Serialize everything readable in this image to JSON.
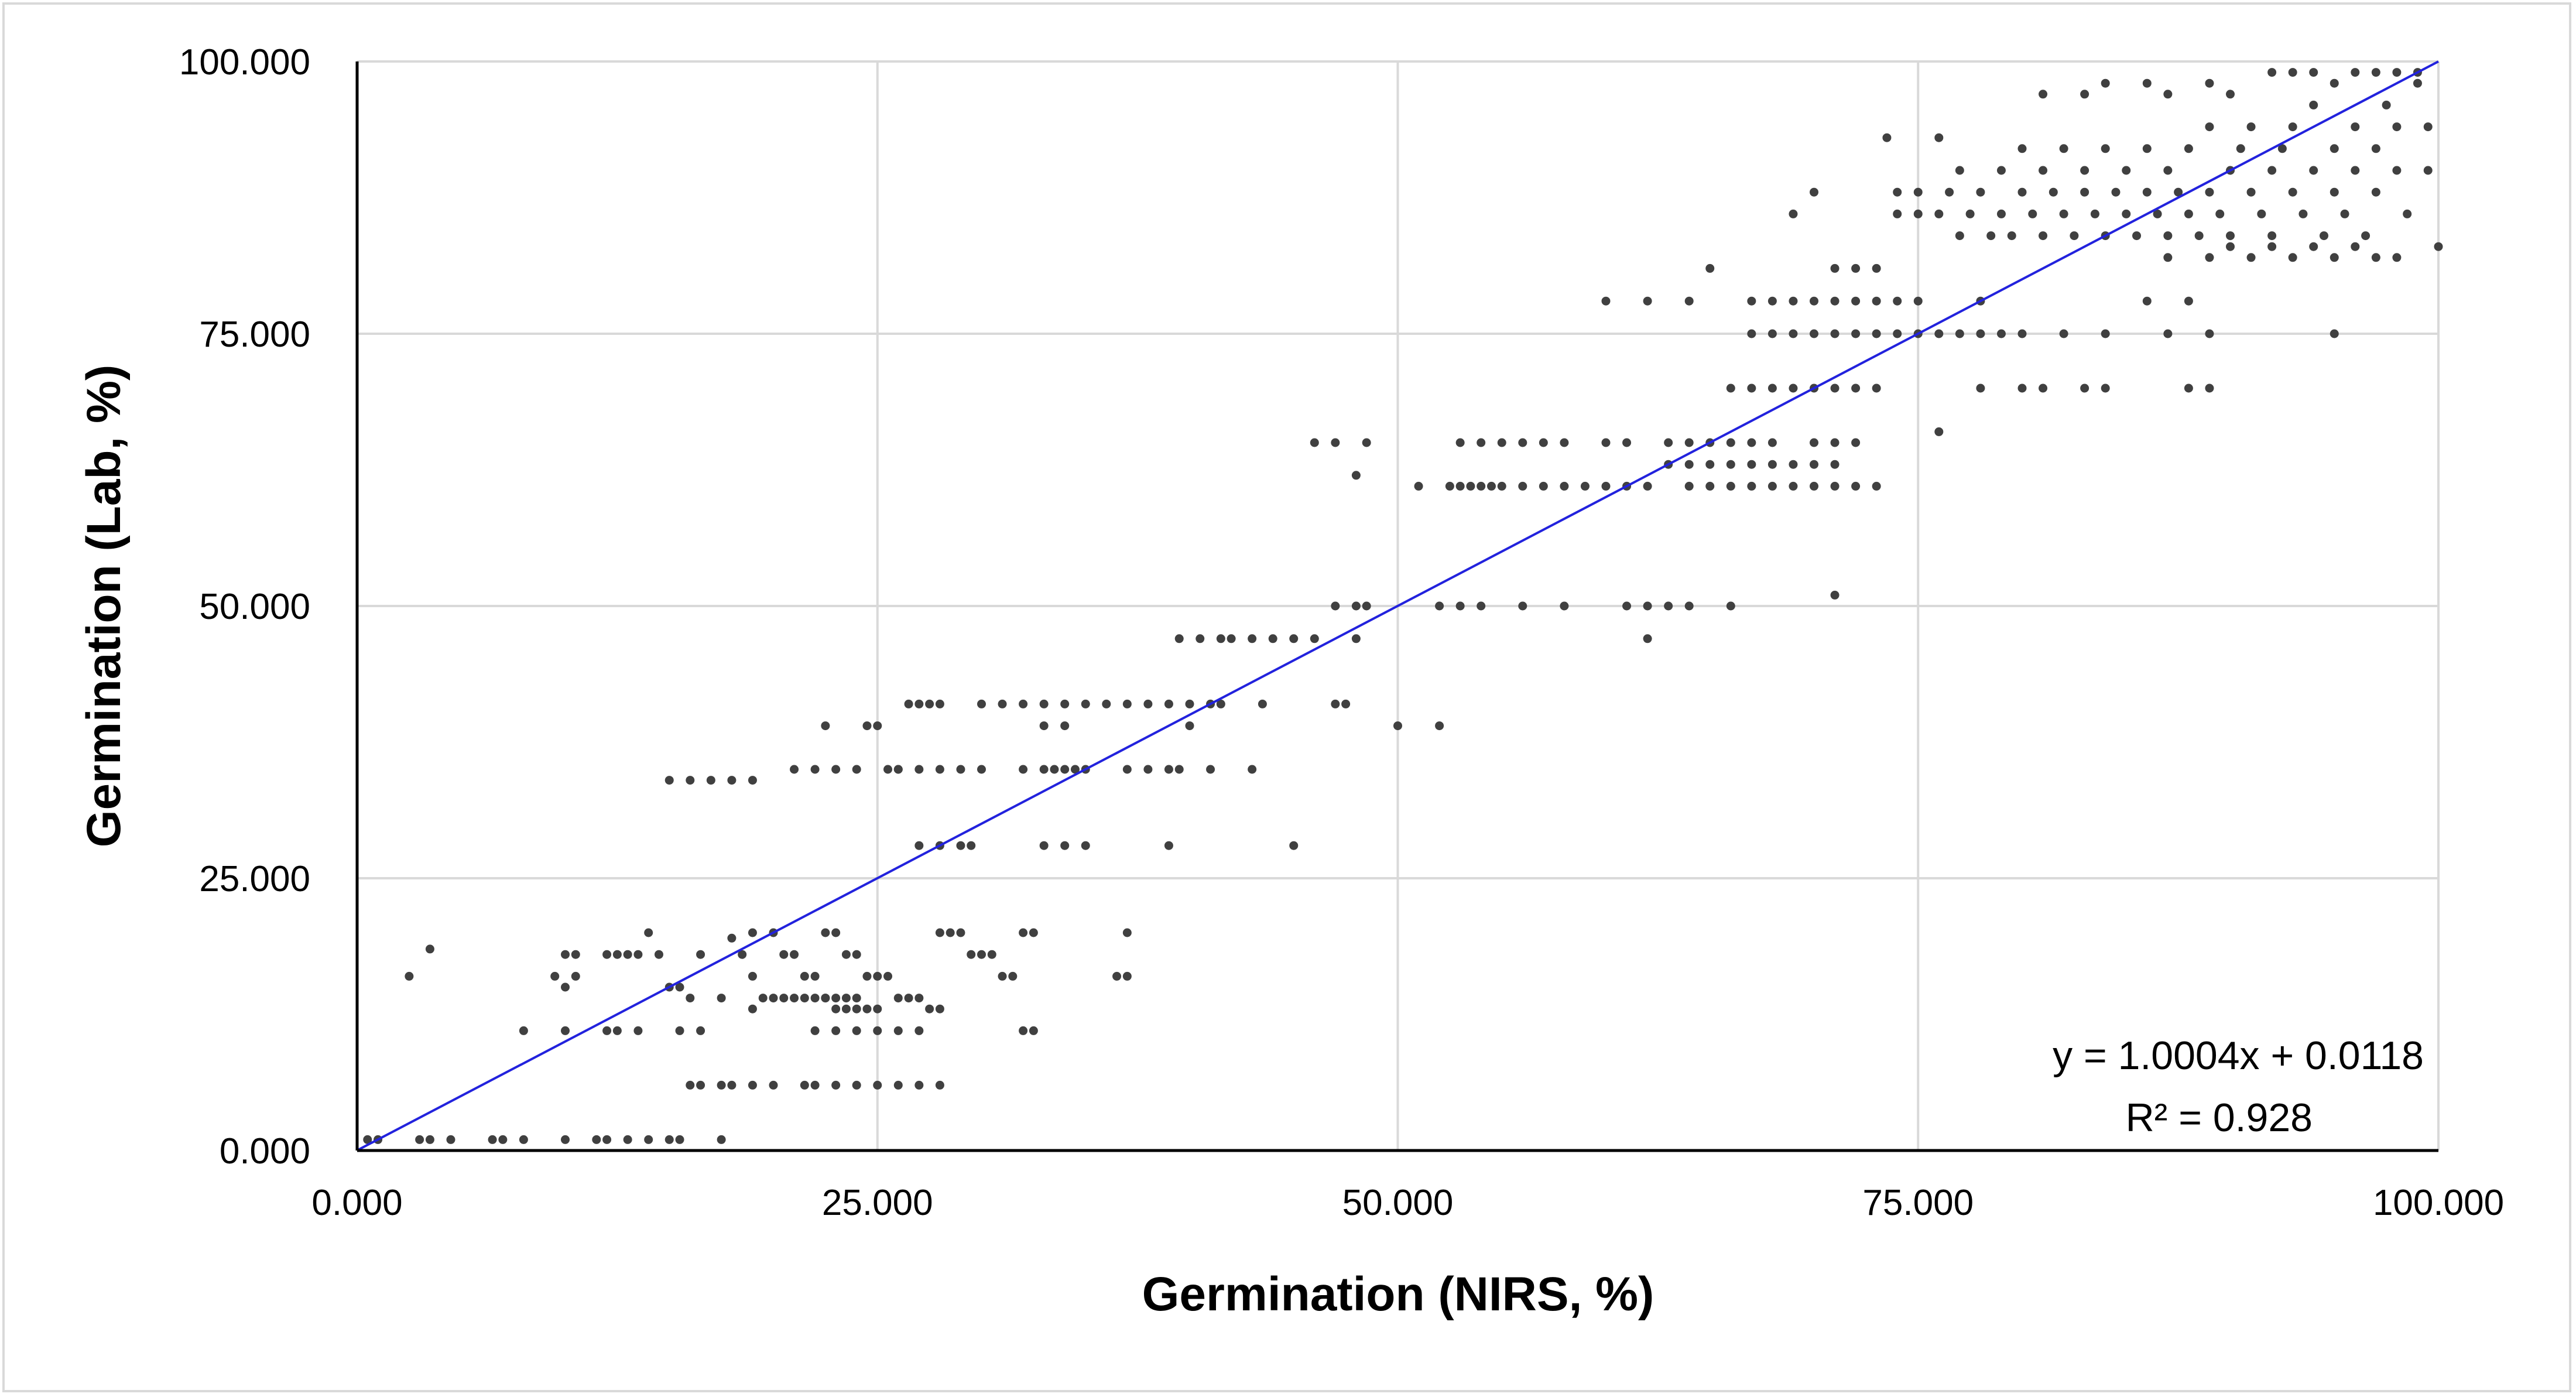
{
  "chart_data": {
    "type": "scatter",
    "xlabel": "Germination (NIRS, %)",
    "ylabel": "Germination (Lab, %)",
    "xlim": [
      0,
      100
    ],
    "ylim": [
      0,
      100
    ],
    "x_ticks": [
      "0.000",
      "25.000",
      "50.000",
      "75.000",
      "100.000"
    ],
    "y_ticks": [
      "0.000",
      "25.000",
      "50.000",
      "75.000",
      "100.000"
    ],
    "grid": true,
    "legend": "none",
    "trendline": {
      "slope": 1.0004,
      "intercept": 0.0118,
      "equation_label": "y = 1.0004x + 0.0118",
      "r2_label": "R² = 0.928",
      "color": "#2222dd"
    },
    "marker_color": "#404040",
    "points": [
      [
        0.5,
        1
      ],
      [
        1,
        1
      ],
      [
        3,
        1
      ],
      [
        3.5,
        1
      ],
      [
        4.5,
        1
      ],
      [
        6.5,
        1
      ],
      [
        7,
        1
      ],
      [
        8,
        1
      ],
      [
        10,
        1
      ],
      [
        11.5,
        1
      ],
      [
        12,
        1
      ],
      [
        13,
        1
      ],
      [
        14,
        1
      ],
      [
        15,
        1
      ],
      [
        15.5,
        1
      ],
      [
        17.5,
        1
      ],
      [
        2.5,
        16
      ],
      [
        3.5,
        18.5
      ],
      [
        8,
        11
      ],
      [
        10,
        11
      ],
      [
        12,
        11
      ],
      [
        12.5,
        11
      ],
      [
        13.5,
        11
      ],
      [
        15.5,
        11
      ],
      [
        16.5,
        11
      ],
      [
        9.5,
        16
      ],
      [
        10,
        15
      ],
      [
        10.5,
        16
      ],
      [
        10,
        18
      ],
      [
        10.5,
        18
      ],
      [
        12,
        18
      ],
      [
        12.5,
        18
      ],
      [
        13,
        18
      ],
      [
        13.5,
        18
      ],
      [
        14,
        20
      ],
      [
        14.5,
        18
      ],
      [
        15,
        15
      ],
      [
        15.5,
        15
      ],
      [
        16,
        14
      ],
      [
        16,
        6
      ],
      [
        16.5,
        6
      ],
      [
        17.5,
        6
      ],
      [
        18,
        6
      ],
      [
        19,
        6
      ],
      [
        20,
        6
      ],
      [
        15,
        34
      ],
      [
        16,
        34
      ],
      [
        17,
        34
      ],
      [
        18,
        34
      ],
      [
        19,
        34
      ],
      [
        16.5,
        18
      ],
      [
        17.5,
        14
      ],
      [
        18,
        19.5
      ],
      [
        18.5,
        18
      ],
      [
        19,
        16
      ],
      [
        19,
        13
      ],
      [
        19.5,
        14
      ],
      [
        20,
        14
      ],
      [
        20.5,
        14
      ],
      [
        21,
        14
      ],
      [
        21.5,
        14
      ],
      [
        22,
        14
      ],
      [
        22.5,
        14
      ],
      [
        23,
        14
      ],
      [
        23.5,
        14
      ],
      [
        24,
        14
      ],
      [
        19,
        20
      ],
      [
        20,
        20
      ],
      [
        20.5,
        18
      ],
      [
        21,
        18
      ],
      [
        21.5,
        16
      ],
      [
        22,
        16
      ],
      [
        22.5,
        14
      ],
      [
        23,
        13
      ],
      [
        23.5,
        13
      ],
      [
        24,
        13
      ],
      [
        24.5,
        13
      ],
      [
        25,
        13
      ],
      [
        21,
        35
      ],
      [
        22,
        35
      ],
      [
        22.5,
        39
      ],
      [
        23,
        35
      ],
      [
        24,
        35
      ],
      [
        24.5,
        39
      ],
      [
        25,
        39
      ],
      [
        25.5,
        35
      ],
      [
        26,
        35
      ],
      [
        22.5,
        20
      ],
      [
        23,
        20
      ],
      [
        23.5,
        18
      ],
      [
        24,
        18
      ],
      [
        24.5,
        16
      ],
      [
        25,
        16
      ],
      [
        25.5,
        16
      ],
      [
        26,
        14
      ],
      [
        26.5,
        14
      ],
      [
        27,
        14
      ],
      [
        27.5,
        13
      ],
      [
        28,
        13
      ],
      [
        22,
        11
      ],
      [
        23,
        11
      ],
      [
        24,
        11
      ],
      [
        25,
        11
      ],
      [
        26,
        11
      ],
      [
        27,
        11
      ],
      [
        21.5,
        6
      ],
      [
        22,
        6
      ],
      [
        23,
        6
      ],
      [
        24,
        6
      ],
      [
        25,
        6
      ],
      [
        26,
        6
      ],
      [
        27,
        6
      ],
      [
        28,
        6
      ],
      [
        26,
        35
      ],
      [
        27,
        35
      ],
      [
        28,
        35
      ],
      [
        29,
        35
      ],
      [
        30,
        35
      ],
      [
        26.5,
        41
      ],
      [
        27,
        41
      ],
      [
        27.5,
        41
      ],
      [
        28,
        41
      ],
      [
        30,
        41
      ],
      [
        31,
        41
      ],
      [
        32,
        41
      ],
      [
        33,
        41
      ],
      [
        27,
        28
      ],
      [
        28,
        28
      ],
      [
        29,
        28
      ],
      [
        29.5,
        28
      ],
      [
        28,
        20
      ],
      [
        28.5,
        20
      ],
      [
        29,
        20
      ],
      [
        29.5,
        18
      ],
      [
        30,
        18
      ],
      [
        30.5,
        18
      ],
      [
        31,
        16
      ],
      [
        31.5,
        16
      ],
      [
        32,
        20
      ],
      [
        32.5,
        20
      ],
      [
        32,
        11
      ],
      [
        32.5,
        11
      ],
      [
        32,
        35
      ],
      [
        33,
        35
      ],
      [
        33.5,
        35
      ],
      [
        34,
        35
      ],
      [
        34.5,
        35
      ],
      [
        35,
        35
      ],
      [
        33,
        39
      ],
      [
        34,
        39
      ],
      [
        33,
        28
      ],
      [
        34,
        28
      ],
      [
        35,
        28
      ],
      [
        34,
        41
      ],
      [
        35,
        41
      ],
      [
        36,
        41
      ],
      [
        37,
        41
      ],
      [
        38,
        41
      ],
      [
        39,
        41
      ],
      [
        40,
        41
      ],
      [
        36.5,
        16
      ],
      [
        37,
        16
      ],
      [
        37,
        20
      ],
      [
        37,
        35
      ],
      [
        38,
        35
      ],
      [
        39,
        35
      ],
      [
        39.5,
        35
      ],
      [
        41,
        35
      ],
      [
        43,
        35
      ],
      [
        39,
        28
      ],
      [
        40,
        39
      ],
      [
        41,
        41
      ],
      [
        41.5,
        41
      ],
      [
        39.5,
        47
      ],
      [
        40.5,
        47
      ],
      [
        41.5,
        47
      ],
      [
        42,
        47
      ],
      [
        43,
        47
      ],
      [
        44,
        47
      ],
      [
        45,
        47
      ],
      [
        46,
        47
      ],
      [
        43.5,
        41
      ],
      [
        45,
        28
      ],
      [
        47,
        41
      ],
      [
        47.5,
        41
      ],
      [
        48,
        47
      ],
      [
        46,
        65
      ],
      [
        47,
        65
      ],
      [
        48,
        62
      ],
      [
        48.5,
        65
      ],
      [
        47,
        50
      ],
      [
        48,
        50
      ],
      [
        48.5,
        50
      ],
      [
        50,
        39
      ],
      [
        52,
        39
      ],
      [
        51,
        61
      ],
      [
        52.5,
        61
      ],
      [
        53,
        61
      ],
      [
        53.5,
        61
      ],
      [
        54,
        61
      ],
      [
        54.5,
        61
      ],
      [
        55,
        61
      ],
      [
        56,
        61
      ],
      [
        57,
        61
      ],
      [
        58,
        61
      ],
      [
        59,
        61
      ],
      [
        60,
        61
      ],
      [
        61,
        61
      ],
      [
        62,
        61
      ],
      [
        53,
        65
      ],
      [
        54,
        65
      ],
      [
        55,
        65
      ],
      [
        56,
        65
      ],
      [
        57,
        65
      ],
      [
        58,
        65
      ],
      [
        60,
        65
      ],
      [
        61,
        65
      ],
      [
        52,
        50
      ],
      [
        53,
        50
      ],
      [
        54,
        50
      ],
      [
        56,
        50
      ],
      [
        58,
        50
      ],
      [
        61,
        50
      ],
      [
        62,
        50
      ],
      [
        63,
        50
      ],
      [
        64,
        50
      ],
      [
        66,
        50
      ],
      [
        62,
        47
      ],
      [
        64,
        61
      ],
      [
        65,
        61
      ],
      [
        66,
        61
      ],
      [
        67,
        61
      ],
      [
        68,
        61
      ],
      [
        69,
        61
      ],
      [
        70,
        61
      ],
      [
        71,
        61
      ],
      [
        72,
        61
      ],
      [
        73,
        61
      ],
      [
        63,
        63
      ],
      [
        64,
        63
      ],
      [
        65,
        63
      ],
      [
        66,
        63
      ],
      [
        67,
        63
      ],
      [
        68,
        63
      ],
      [
        69,
        63
      ],
      [
        70,
        63
      ],
      [
        71,
        63
      ],
      [
        63,
        65
      ],
      [
        64,
        65
      ],
      [
        65,
        65
      ],
      [
        66,
        65
      ],
      [
        67,
        65
      ],
      [
        68,
        65
      ],
      [
        70,
        65
      ],
      [
        71,
        65
      ],
      [
        72,
        65
      ],
      [
        60,
        78
      ],
      [
        62,
        78
      ],
      [
        64,
        78
      ],
      [
        66,
        70
      ],
      [
        67,
        70
      ],
      [
        68,
        70
      ],
      [
        69,
        70
      ],
      [
        70,
        70
      ],
      [
        71,
        70
      ],
      [
        72,
        70
      ],
      [
        73,
        70
      ],
      [
        65,
        81
      ],
      [
        67,
        78
      ],
      [
        68,
        78
      ],
      [
        69,
        78
      ],
      [
        70,
        78
      ],
      [
        71,
        78
      ],
      [
        72,
        78
      ],
      [
        73,
        78
      ],
      [
        74,
        78
      ],
      [
        75,
        78
      ],
      [
        67,
        75
      ],
      [
        68,
        75
      ],
      [
        69,
        75
      ],
      [
        70,
        75
      ],
      [
        71,
        75
      ],
      [
        72,
        75
      ],
      [
        73,
        75
      ],
      [
        74,
        75
      ],
      [
        75,
        75
      ],
      [
        76,
        75
      ],
      [
        77,
        75
      ],
      [
        78,
        75
      ],
      [
        79,
        75
      ],
      [
        80,
        75
      ],
      [
        82,
        75
      ],
      [
        84,
        75
      ],
      [
        71,
        51
      ],
      [
        69,
        86
      ],
      [
        70,
        88
      ],
      [
        71,
        81
      ],
      [
        72,
        81
      ],
      [
        73,
        81
      ],
      [
        73.5,
        93
      ],
      [
        74,
        86
      ],
      [
        74,
        88
      ],
      [
        75,
        86
      ],
      [
        75,
        88
      ],
      [
        76,
        93
      ],
      [
        76,
        86
      ],
      [
        76.5,
        88
      ],
      [
        77,
        84
      ],
      [
        77,
        90
      ],
      [
        77.5,
        86
      ],
      [
        78,
        88
      ],
      [
        78,
        78
      ],
      [
        78.5,
        84
      ],
      [
        79,
        90
      ],
      [
        79,
        86
      ],
      [
        79.5,
        84
      ],
      [
        80,
        88
      ],
      [
        80,
        92
      ],
      [
        80.5,
        86
      ],
      [
        81,
        84
      ],
      [
        81,
        90
      ],
      [
        81.5,
        88
      ],
      [
        82,
        86
      ],
      [
        82,
        92
      ],
      [
        82.5,
        84
      ],
      [
        83,
        88
      ],
      [
        83,
        90
      ],
      [
        83.5,
        86
      ],
      [
        84,
        84
      ],
      [
        84,
        92
      ],
      [
        84.5,
        88
      ],
      [
        85,
        86
      ],
      [
        85,
        90
      ],
      [
        85.5,
        84
      ],
      [
        86,
        88
      ],
      [
        86,
        92
      ],
      [
        86.5,
        86
      ],
      [
        87,
        84
      ],
      [
        87,
        90
      ],
      [
        87.5,
        88
      ],
      [
        88,
        86
      ],
      [
        88,
        92
      ],
      [
        88.5,
        84
      ],
      [
        89,
        88
      ],
      [
        89,
        94
      ],
      [
        89.5,
        86
      ],
      [
        90,
        90
      ],
      [
        90,
        84
      ],
      [
        90.5,
        92
      ],
      [
        91,
        88
      ],
      [
        91,
        94
      ],
      [
        91.5,
        86
      ],
      [
        92,
        90
      ],
      [
        92,
        84
      ],
      [
        92.5,
        92
      ],
      [
        93,
        88
      ],
      [
        93,
        94
      ],
      [
        93.5,
        86
      ],
      [
        94,
        90
      ],
      [
        94,
        96
      ],
      [
        94.5,
        84
      ],
      [
        95,
        92
      ],
      [
        95,
        88
      ],
      [
        95.5,
        86
      ],
      [
        96,
        94
      ],
      [
        96,
        90
      ],
      [
        96.5,
        84
      ],
      [
        97,
        92
      ],
      [
        97,
        88
      ],
      [
        97.5,
        96
      ],
      [
        98,
        94
      ],
      [
        98,
        90
      ],
      [
        98.5,
        86
      ],
      [
        99,
        99
      ],
      [
        99.5,
        94
      ],
      [
        99.5,
        90
      ],
      [
        100,
        83
      ],
      [
        81,
        97
      ],
      [
        83,
        97
      ],
      [
        84,
        98
      ],
      [
        86,
        98
      ],
      [
        87,
        97
      ],
      [
        89,
        98
      ],
      [
        90,
        97
      ],
      [
        92,
        99
      ],
      [
        93,
        99
      ],
      [
        94,
        99
      ],
      [
        95,
        98
      ],
      [
        96,
        99
      ],
      [
        97,
        99
      ],
      [
        98,
        99
      ],
      [
        99,
        98
      ],
      [
        76,
        66
      ],
      [
        78,
        70
      ],
      [
        80,
        70
      ],
      [
        81,
        70
      ],
      [
        83,
        70
      ],
      [
        84,
        70
      ],
      [
        88,
        70
      ],
      [
        89,
        70
      ],
      [
        95,
        75
      ],
      [
        87,
        75
      ],
      [
        88,
        78
      ],
      [
        86,
        78
      ],
      [
        89,
        75
      ],
      [
        87,
        82
      ],
      [
        89,
        82
      ],
      [
        91,
        82
      ],
      [
        93,
        82
      ],
      [
        95,
        82
      ],
      [
        97,
        82
      ],
      [
        98,
        82
      ],
      [
        90,
        83
      ],
      [
        92,
        83
      ],
      [
        94,
        83
      ],
      [
        96,
        83
      ]
    ]
  }
}
